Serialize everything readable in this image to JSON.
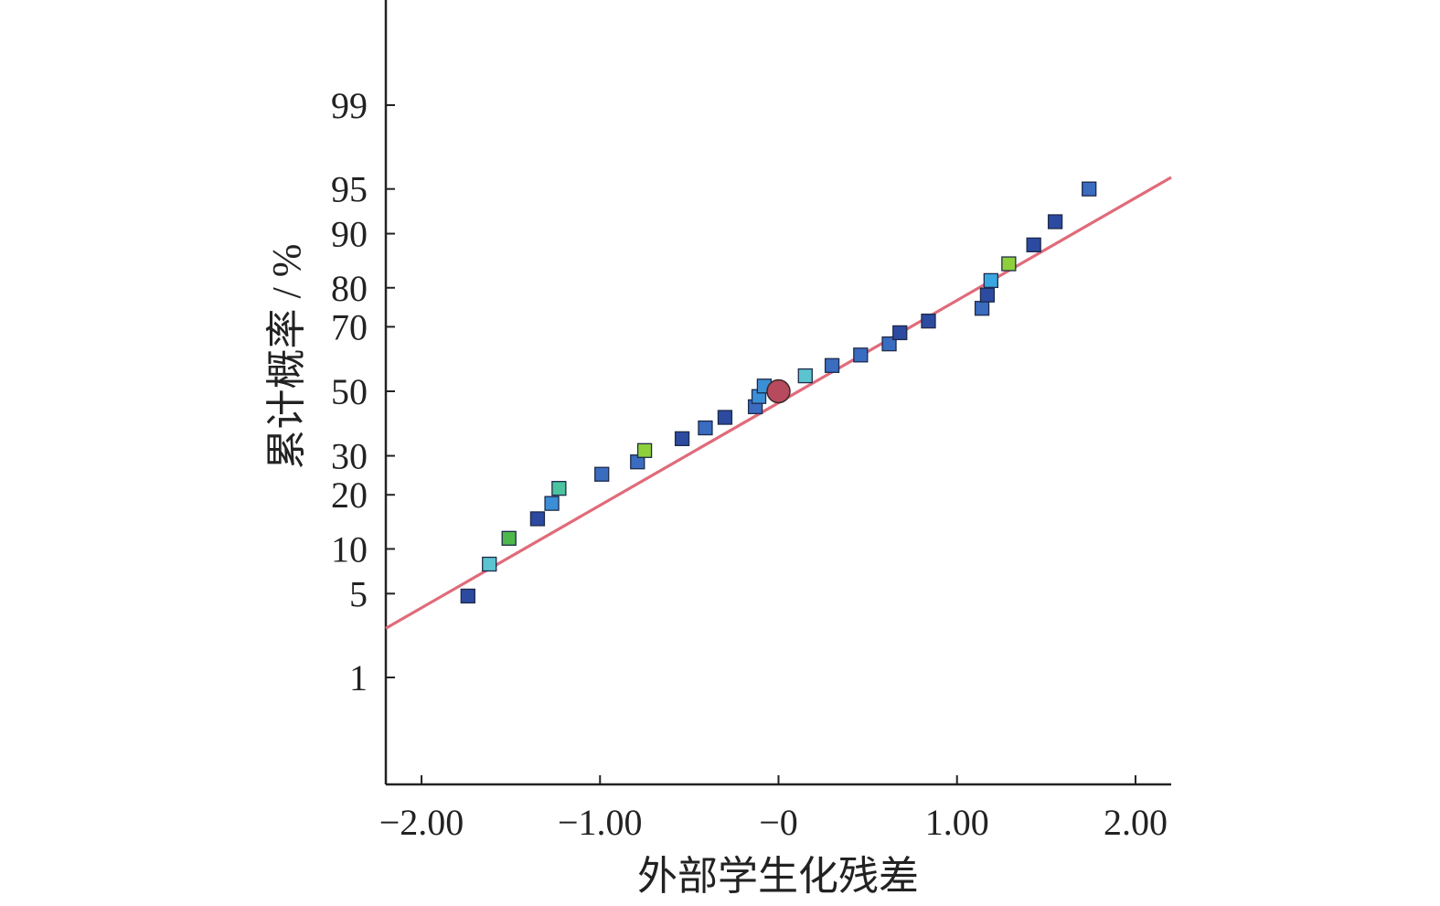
{
  "chart_data": {
    "type": "scatter",
    "title": "",
    "xlabel": "外部学生化残差",
    "ylabel": "累计概率 / %",
    "xlim": [
      -2.2,
      2.2
    ],
    "y_scale": "normal-probability",
    "x_ticks": [
      {
        "value": -2.0,
        "label": "−2.00"
      },
      {
        "value": -1.0,
        "label": "−1.00"
      },
      {
        "value": 0.0,
        "label": "−0"
      },
      {
        "value": 1.0,
        "label": "1.00"
      },
      {
        "value": 2.0,
        "label": "2.00"
      }
    ],
    "y_ticks": [
      {
        "value": 1,
        "label": "1"
      },
      {
        "value": 5,
        "label": "5"
      },
      {
        "value": 10,
        "label": "10"
      },
      {
        "value": 20,
        "label": "20"
      },
      {
        "value": 30,
        "label": "30"
      },
      {
        "value": 50,
        "label": "50"
      },
      {
        "value": 70,
        "label": "70"
      },
      {
        "value": 80,
        "label": "80"
      },
      {
        "value": 90,
        "label": "90"
      },
      {
        "value": 95,
        "label": "95"
      },
      {
        "value": 99,
        "label": "99"
      }
    ],
    "grid": false,
    "legend": "none",
    "fit_line": {
      "color": "#e06b7a",
      "x": [
        -2.2,
        2.2
      ],
      "y": [
        2.7,
        95.9
      ]
    },
    "points": [
      {
        "x": -1.74,
        "y": 4.8,
        "color": "#2c4aa0",
        "marker": "square"
      },
      {
        "x": -1.62,
        "y": 8.0,
        "color": "#5bc4cf",
        "marker": "square"
      },
      {
        "x": -1.51,
        "y": 11.6,
        "color": "#4fb84a",
        "marker": "square"
      },
      {
        "x": -1.35,
        "y": 15.0,
        "color": "#2c4aa0",
        "marker": "square"
      },
      {
        "x": -1.27,
        "y": 18.1,
        "color": "#3b8fd6",
        "marker": "square"
      },
      {
        "x": -1.23,
        "y": 21.5,
        "color": "#4cc3a0",
        "marker": "square"
      },
      {
        "x": -0.99,
        "y": 25.0,
        "color": "#3a6cc0",
        "marker": "square"
      },
      {
        "x": -0.79,
        "y": 28.3,
        "color": "#3a6cc0",
        "marker": "square"
      },
      {
        "x": -0.75,
        "y": 31.5,
        "color": "#8ed03c",
        "marker": "square"
      },
      {
        "x": -0.54,
        "y": 35.0,
        "color": "#2c4aa0",
        "marker": "square"
      },
      {
        "x": -0.41,
        "y": 38.3,
        "color": "#3a6cc0",
        "marker": "square"
      },
      {
        "x": -0.3,
        "y": 41.6,
        "color": "#2c4aa0",
        "marker": "square"
      },
      {
        "x": -0.13,
        "y": 45.0,
        "color": "#3a6cc0",
        "marker": "square"
      },
      {
        "x": -0.11,
        "y": 48.3,
        "color": "#3b8fd6",
        "marker": "square"
      },
      {
        "x": -0.08,
        "y": 51.7,
        "color": "#3b8fd6",
        "marker": "square"
      },
      {
        "x": 0.15,
        "y": 55.0,
        "color": "#5bc4cf",
        "marker": "square"
      },
      {
        "x": 0.3,
        "y": 58.3,
        "color": "#3a6cc0",
        "marker": "square"
      },
      {
        "x": 0.46,
        "y": 61.6,
        "color": "#3a6cc0",
        "marker": "square"
      },
      {
        "x": 0.62,
        "y": 65.0,
        "color": "#3a6cc0",
        "marker": "square"
      },
      {
        "x": 0.68,
        "y": 68.3,
        "color": "#2c4aa0",
        "marker": "square"
      },
      {
        "x": 0.84,
        "y": 71.6,
        "color": "#2c4aa0",
        "marker": "square"
      },
      {
        "x": 1.14,
        "y": 75.0,
        "color": "#3a6cc0",
        "marker": "square"
      },
      {
        "x": 1.17,
        "y": 78.3,
        "color": "#2c4aa0",
        "marker": "square"
      },
      {
        "x": 1.19,
        "y": 81.6,
        "color": "#3ba7e0",
        "marker": "square"
      },
      {
        "x": 1.29,
        "y": 85.0,
        "color": "#8ed03c",
        "marker": "square"
      },
      {
        "x": 1.43,
        "y": 88.3,
        "color": "#2c4aa0",
        "marker": "square"
      },
      {
        "x": 1.55,
        "y": 91.6,
        "color": "#2c4aa0",
        "marker": "square"
      },
      {
        "x": 1.74,
        "y": 95.0,
        "color": "#3a6cc0",
        "marker": "square"
      },
      {
        "x": 0.0,
        "y": 50.0,
        "color": "#b84a5e",
        "marker": "circle"
      }
    ]
  }
}
